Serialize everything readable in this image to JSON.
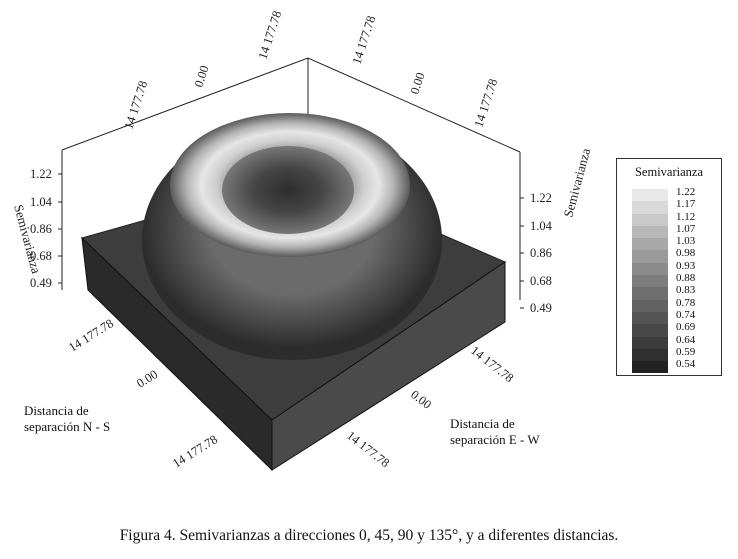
{
  "figure": {
    "caption": "Figura 4. Semivarianzas a direcciones 0, 45, 90 y 135°, y a diferentes distancias."
  },
  "axes": {
    "z_title_left": "Semivarianza",
    "z_title_right": "Semivarianza",
    "z_ticks": [
      "1.22",
      "1.04",
      "0.86",
      "0.68",
      "0.49"
    ],
    "ns_title_line1": "Distancia de",
    "ns_title_line2": "separación N - S",
    "ew_title_line1": "Distancia de",
    "ew_title_line2": "separación E - W",
    "ns_ticks": [
      "14 177.78",
      "0.00",
      "14 177.78"
    ],
    "ew_ticks": [
      "14 177.78",
      "14 177.78"
    ],
    "top_back_ticks": [
      "14 177.78",
      "0.00",
      "14 177.78",
      "14 177.78",
      "0.00",
      "14 177.78"
    ]
  },
  "legend": {
    "title": "Semivarianza",
    "values": [
      "1.22",
      "1.17",
      "1.12",
      "1.07",
      "1.03",
      "0.98",
      "0.93",
      "0.88",
      "0.83",
      "0.78",
      "0.74",
      "0.69",
      "0.64",
      "0.59",
      "0.54"
    ],
    "colors": [
      "#e8e8e8",
      "#d9d9d9",
      "#c9c9c9",
      "#b8b8b8",
      "#a8a8a8",
      "#9a9a9a",
      "#8b8b8b",
      "#7d7d7d",
      "#6f6f6f",
      "#626262",
      "#555555",
      "#484848",
      "#3c3c3c",
      "#2f2f2f",
      "#222222"
    ]
  }
}
